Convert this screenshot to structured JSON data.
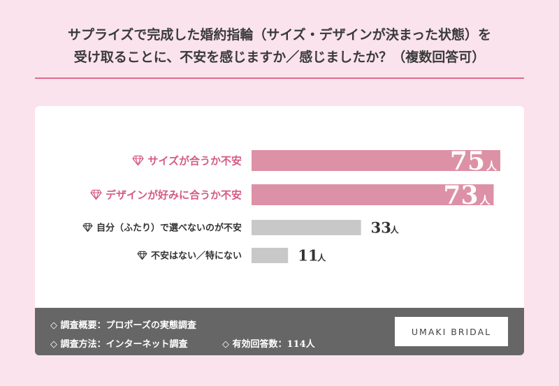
{
  "title": {
    "line1": "サプライズで完成した婚約指輪（サイズ・デザインが決まった状態）を",
    "line2": "受け取ることに、不安を感じますか／感じましたか？（複数回答可）"
  },
  "chart_data": {
    "type": "bar",
    "orientation": "horizontal",
    "categories": [
      "サイズが合うか不安",
      "デザインが好みに合うか不安",
      "自分（ふたり）で選べないのが不安",
      "不安はない／特にない"
    ],
    "values": [
      75,
      73,
      33,
      11
    ],
    "unit": "人",
    "highlight": [
      true,
      true,
      false,
      false
    ],
    "colors": {
      "highlight": "#dd91a6",
      "normal": "#c8c8c8",
      "highlight_text": "#d45b85",
      "normal_text": "#333333",
      "icon": "#333333"
    }
  },
  "footer": {
    "line1": "◇ 調査概要：プロポーズの実態調査",
    "line2a": "◇ 調査方法：インターネット調査",
    "line2b": "◇ 有効回答数：114人",
    "brand": "UMAKI BRIDAL"
  }
}
